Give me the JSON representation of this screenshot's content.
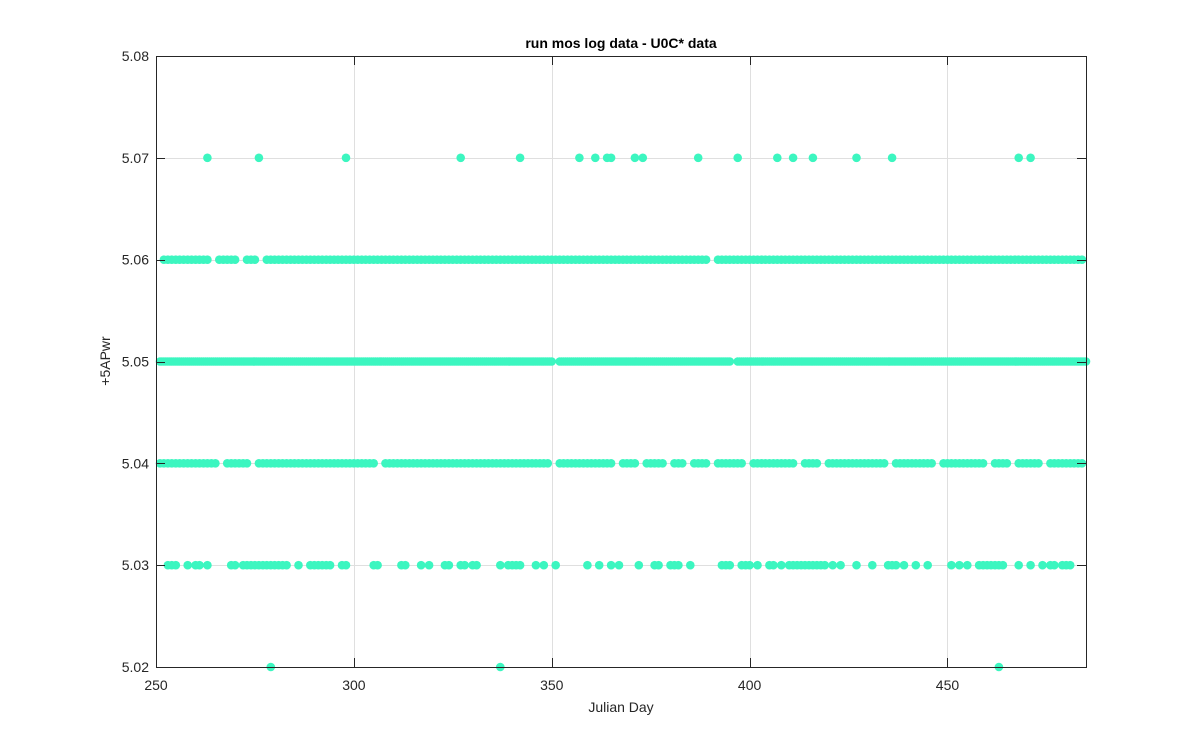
{
  "chart_data": {
    "type": "scatter",
    "title": "run mos log data - U0C* data",
    "xlabel": "Julian Day",
    "ylabel": "+5APwr",
    "xlim": [
      250,
      485
    ],
    "ylim": [
      5.02,
      5.08
    ],
    "xticks": [
      250,
      300,
      350,
      400,
      450
    ],
    "yticks": [
      5.02,
      5.03,
      5.04,
      5.05,
      5.06,
      5.07,
      5.08
    ],
    "xtick_labels": [
      "250",
      "300",
      "350",
      "400",
      "450"
    ],
    "ytick_labels": [
      "5.02",
      "5.03",
      "5.04",
      "5.05",
      "5.06",
      "5.07",
      "5.08"
    ],
    "grid": true,
    "legend": "none",
    "marker_color": "#3cf6c0",
    "series": [
      {
        "points": {
          "5.07": [
            263,
            276,
            298,
            327,
            342,
            357,
            361,
            364,
            365,
            371,
            373,
            387,
            397,
            407,
            411,
            416,
            427,
            436,
            468,
            471
          ],
          "5.02": [
            279,
            337,
            463
          ],
          "5.03": [
            253,
            254,
            255,
            258,
            260,
            261,
            263,
            269,
            270,
            272,
            273,
            274,
            275,
            276,
            277,
            278,
            279,
            280,
            281,
            282,
            283,
            286,
            289,
            290,
            291,
            292,
            293,
            294,
            297,
            298,
            305,
            306,
            312,
            313,
            317,
            319,
            323,
            324,
            327,
            328,
            330,
            331,
            337,
            339,
            340,
            341,
            342,
            346,
            348,
            351,
            359,
            362,
            365,
            367,
            372,
            376,
            377,
            380,
            381,
            382,
            385,
            393,
            394,
            395,
            398,
            399,
            400,
            402,
            405,
            406,
            408,
            410,
            411,
            412,
            413,
            414,
            415,
            416,
            417,
            418,
            419,
            421,
            423,
            427,
            431,
            435,
            436,
            437,
            439,
            442,
            445,
            451,
            453,
            455,
            458,
            459,
            460,
            461,
            462,
            463,
            464,
            468,
            471,
            474,
            476,
            477,
            479,
            480,
            481
          ]
        },
        "dense_rows": {
          "5.06": {
            "from": 252,
            "to": 484,
            "step": 1,
            "gaps": [
              [
                264,
                265
              ],
              [
                271,
                272
              ],
              [
                276,
                277
              ],
              [
                390,
                391
              ]
            ]
          },
          "5.05": {
            "from": 251,
            "to": 485,
            "step": 0.5,
            "gaps": [
              [
                350.5,
                351.5
              ],
              [
                395.5,
                396.5
              ]
            ]
          },
          "5.04": {
            "from": 251,
            "to": 484,
            "step": 1,
            "gaps": [
              [
                266,
                267
              ],
              [
                274,
                275
              ],
              [
                306,
                307
              ],
              [
                350,
                351
              ],
              [
                366,
                367
              ],
              [
                372,
                373
              ],
              [
                379,
                380
              ],
              [
                384,
                385
              ],
              [
                390,
                391
              ],
              [
                399,
                400
              ],
              [
                412,
                413
              ],
              [
                418,
                419
              ],
              [
                435,
                436
              ],
              [
                447,
                448
              ],
              [
                460,
                461
              ],
              [
                466,
                467
              ],
              [
                474,
                475
              ]
            ]
          }
        }
      }
    ]
  }
}
